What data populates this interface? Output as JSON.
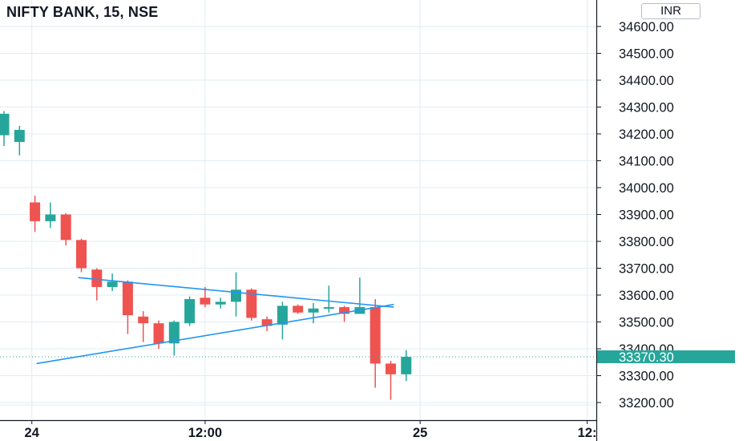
{
  "header": {
    "symbol_title": "NIFTY BANK, 15, NSE",
    "currency": "INR"
  },
  "colors": {
    "up": "#26a69a",
    "down": "#ef5350",
    "trendline": "#2196f3",
    "last_price": "#26a69a",
    "grid": "#e1ecf2",
    "axis_line": "#131722"
  },
  "chart_data": {
    "type": "candlestick",
    "title": "NIFTY BANK, 15, NSE",
    "ylim": [
      33150,
      34680
    ],
    "y_ticks": [
      {
        "value": 34600,
        "label": "34600.00"
      },
      {
        "value": 34500,
        "label": "34500.00"
      },
      {
        "value": 34400,
        "label": "34400.00"
      },
      {
        "value": 34300,
        "label": "34300.00"
      },
      {
        "value": 34200,
        "label": "34200.00"
      },
      {
        "value": 34100,
        "label": "34100.00"
      },
      {
        "value": 34000,
        "label": "34000.00"
      },
      {
        "value": 33900,
        "label": "33900.00"
      },
      {
        "value": 33800,
        "label": "33800.00"
      },
      {
        "value": 33700,
        "label": "33700.00"
      },
      {
        "value": 33600,
        "label": "33600.00"
      },
      {
        "value": 33500,
        "label": "33500.00"
      },
      {
        "value": 33400,
        "label": "33400.00"
      },
      {
        "value": 33300,
        "label": "33300.00"
      },
      {
        "value": 33200,
        "label": "33200.00"
      }
    ],
    "x_ticks": [
      {
        "index": 1.8,
        "label": "24"
      },
      {
        "index": 13,
        "label": "12:00"
      },
      {
        "index": 26.9,
        "label": "25"
      },
      {
        "index": 37.7,
        "label": "12:"
      }
    ],
    "last_price": 33370.3,
    "last_price_label": "33370.30",
    "candles": [
      {
        "o": 34195,
        "h": 34285,
        "l": 34155,
        "c": 34275
      },
      {
        "o": 34170,
        "h": 34230,
        "l": 34120,
        "c": 34215
      },
      {
        "o": 33945,
        "h": 33970,
        "l": 33835,
        "c": 33875
      },
      {
        "o": 33875,
        "h": 33945,
        "l": 33850,
        "c": 33900
      },
      {
        "o": 33900,
        "h": 33905,
        "l": 33785,
        "c": 33805
      },
      {
        "o": 33805,
        "h": 33810,
        "l": 33685,
        "c": 33700
      },
      {
        "o": 33695,
        "h": 33700,
        "l": 33580,
        "c": 33630
      },
      {
        "o": 33630,
        "h": 33680,
        "l": 33615,
        "c": 33650
      },
      {
        "o": 33650,
        "h": 33655,
        "l": 33455,
        "c": 33525
      },
      {
        "o": 33520,
        "h": 33540,
        "l": 33425,
        "c": 33495
      },
      {
        "o": 33495,
        "h": 33505,
        "l": 33400,
        "c": 33420
      },
      {
        "o": 33420,
        "h": 33505,
        "l": 33375,
        "c": 33500
      },
      {
        "o": 33495,
        "h": 33595,
        "l": 33485,
        "c": 33585
      },
      {
        "o": 33590,
        "h": 33630,
        "l": 33555,
        "c": 33565
      },
      {
        "o": 33565,
        "h": 33590,
        "l": 33550,
        "c": 33575
      },
      {
        "o": 33575,
        "h": 33685,
        "l": 33520,
        "c": 33620
      },
      {
        "o": 33620,
        "h": 33625,
        "l": 33505,
        "c": 33515
      },
      {
        "o": 33510,
        "h": 33520,
        "l": 33465,
        "c": 33485
      },
      {
        "o": 33490,
        "h": 33575,
        "l": 33435,
        "c": 33560
      },
      {
        "o": 33560,
        "h": 33565,
        "l": 33530,
        "c": 33535
      },
      {
        "o": 33535,
        "h": 33570,
        "l": 33495,
        "c": 33550
      },
      {
        "o": 33550,
        "h": 33635,
        "l": 33535,
        "c": 33555
      },
      {
        "o": 33555,
        "h": 33560,
        "l": 33500,
        "c": 33530
      },
      {
        "o": 33530,
        "h": 33665,
        "l": 33530,
        "c": 33555
      },
      {
        "o": 33555,
        "h": 33585,
        "l": 33255,
        "c": 33345
      },
      {
        "o": 33345,
        "h": 33355,
        "l": 33210,
        "c": 33305
      },
      {
        "o": 33305,
        "h": 33395,
        "l": 33280,
        "c": 33370
      }
    ],
    "trendlines": [
      {
        "from": {
          "index": 4.8,
          "value": 33665
        },
        "to": {
          "index": 25.2,
          "value": 33555
        }
      },
      {
        "from": {
          "index": 2.1,
          "value": 33345
        },
        "to": {
          "index": 25.2,
          "value": 33565
        }
      }
    ]
  }
}
